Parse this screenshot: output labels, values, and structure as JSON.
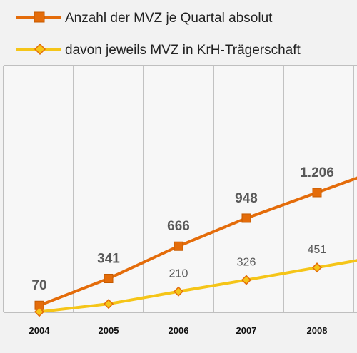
{
  "chart_data": {
    "type": "line",
    "categories": [
      "2004",
      "2005",
      "2006",
      "2007",
      "2008"
    ],
    "series": [
      {
        "name": "Anzahl der MVZ je Quartal absolut",
        "values": [
          70,
          341,
          666,
          948,
          1206
        ],
        "value_labels": [
          "70",
          "341",
          "666",
          "948",
          "1.206"
        ],
        "color": "#e46c0a",
        "marker": "square"
      },
      {
        "name": "davon jeweils MVZ in KrH-Trägerschaft",
        "values": [
          5,
          85,
          210,
          326,
          451
        ],
        "value_labels": [
          "",
          "",
          "210",
          "326",
          "451"
        ],
        "color": "#f5c518",
        "marker": "diamond"
      }
    ],
    "ylim": [
      0,
      1500
    ],
    "grid": "vertical",
    "legend_position": "top-left",
    "title": "",
    "xlabel": "",
    "ylabel": ""
  }
}
